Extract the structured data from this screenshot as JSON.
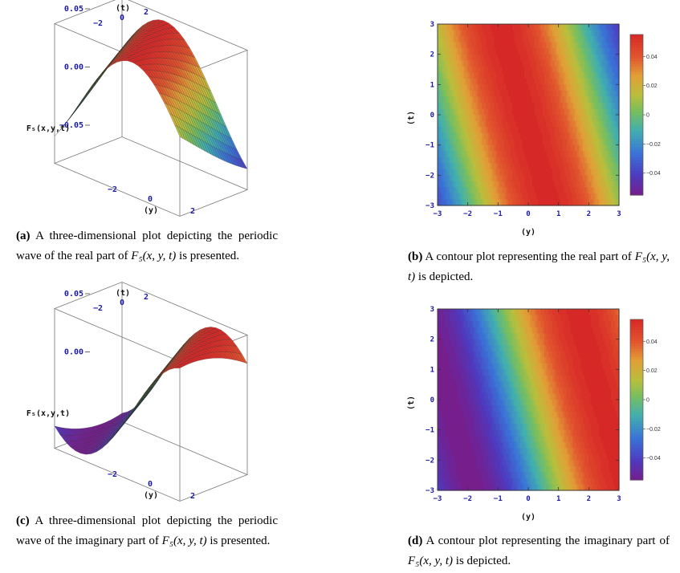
{
  "figures": {
    "a": {
      "caption": {
        "tag": "(a)",
        "text_before": " A three-dimensional plot depicting the periodic wave of the real part of ",
        "math": "F₅(x, y, t)",
        "text_after": " is presented."
      },
      "z_label": "F₅(x,y,t)",
      "z_ticks": [
        "0.05",
        "0.00",
        "−0.05"
      ],
      "t_label": "(t)",
      "t_ticks": [
        "−2",
        "0",
        "2"
      ],
      "y_label": "(y)",
      "y_ticks": [
        "−2",
        "0",
        "2"
      ]
    },
    "b": {
      "caption": {
        "tag": "(b)",
        "text_before": " A contour plot representing the real part of ",
        "math": "F₅(x, y, t)",
        "text_after": " is depicted."
      },
      "x_label": "(y)",
      "y_label": "(t)",
      "x_ticks": [
        "−3",
        "−2",
        "−1",
        "0",
        "1",
        "2",
        "3"
      ],
      "y_ticks": [
        "3",
        "2",
        "1",
        "0",
        "−1",
        "−2",
        "−3"
      ],
      "colorbar_ticks": [
        "0.04",
        "0.02",
        "0",
        "−0.02",
        "−0.04"
      ]
    },
    "c": {
      "caption": {
        "tag": "(c)",
        "text_before": " A three-dimensional plot depicting the periodic wave of the imaginary part of ",
        "math": "F₅(x, y, t)",
        "text_after": " is presented."
      },
      "z_label": "F₅(x,y,t)",
      "z_ticks": [
        "0.05",
        "0.00"
      ],
      "t_label": "(t)",
      "t_ticks": [
        "−2",
        "0",
        "2"
      ],
      "y_label": "(y)",
      "y_ticks": [
        "−2",
        "0",
        "2"
      ]
    },
    "d": {
      "caption": {
        "tag": "(d)",
        "text_before": " A contour plot representing the imaginary part of ",
        "math": "F₅(x, y, t)",
        "text_after": " is depicted."
      },
      "x_label": "(y)",
      "y_label": "(t)",
      "x_ticks": [
        "−3",
        "−2",
        "−1",
        "0",
        "1",
        "2",
        "3"
      ],
      "y_ticks": [
        "3",
        "2",
        "1",
        "0",
        "−1",
        "−2",
        "−3"
      ],
      "colorbar_ticks": [
        "0.04",
        "0.02",
        "0",
        "−0.02",
        "−0.04"
      ]
    }
  },
  "chart_data": [
    {
      "type": "surface3d",
      "panel": "a",
      "function": "real part of F5 periodic wave",
      "amplitude": 0.055,
      "zlim": [
        -0.06,
        0.06
      ],
      "y_range": [
        -3,
        3
      ],
      "t_range": [
        -3,
        3
      ]
    },
    {
      "type": "heatmap",
      "panel": "b",
      "function": "real part of F5 contour",
      "x_range": [
        -3,
        3
      ],
      "y_range": [
        -3,
        3
      ],
      "value_range": [
        -0.055,
        0.055
      ],
      "colormap": "rainbow"
    },
    {
      "type": "surface3d",
      "panel": "c",
      "function": "imaginary part of F5 periodic wave",
      "amplitude": 0.055,
      "zlim": [
        -0.06,
        0.06
      ],
      "y_range": [
        -3,
        3
      ],
      "t_range": [
        -3,
        3
      ]
    },
    {
      "type": "heatmap",
      "panel": "d",
      "function": "imaginary part of F5 contour",
      "x_range": [
        -3,
        3
      ],
      "y_range": [
        -3,
        3
      ],
      "value_range": [
        -0.055,
        0.055
      ],
      "colormap": "rainbow"
    }
  ]
}
